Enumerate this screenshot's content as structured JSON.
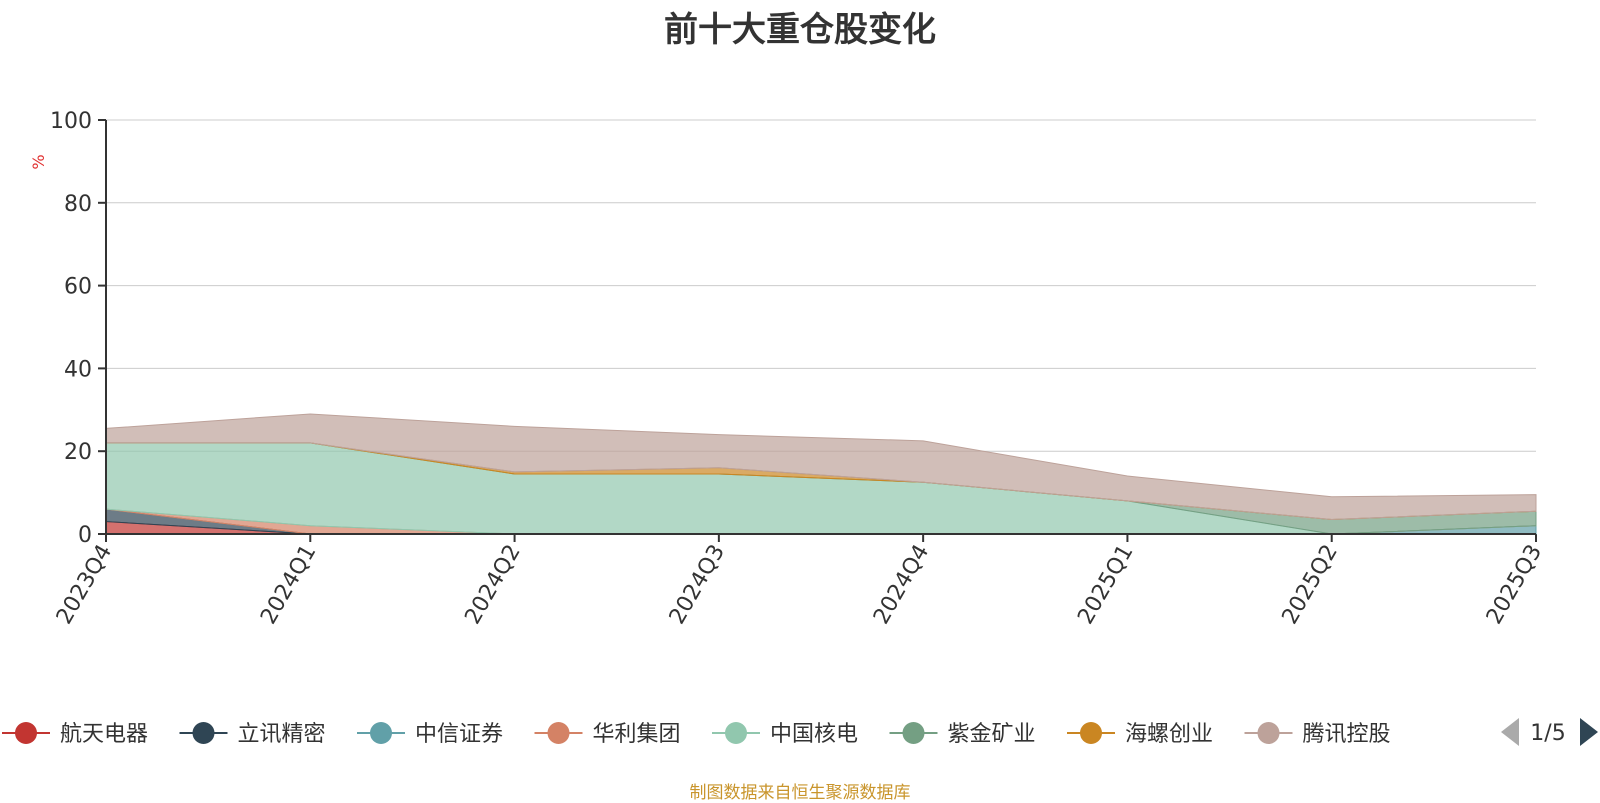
{
  "chart_data": {
    "type": "area",
    "title": "前十大重仓股变化",
    "ylabel": "%",
    "xlabel": "",
    "ylim": [
      0,
      100
    ],
    "yticks": [
      0,
      20,
      40,
      60,
      80,
      100
    ],
    "grid": true,
    "stacked": true,
    "categories": [
      "2023Q4",
      "2024Q1",
      "2024Q2",
      "2024Q3",
      "2024Q4",
      "2025Q1",
      "2025Q2",
      "2025Q3"
    ],
    "series": [
      {
        "name": "航天电器",
        "color": "#c23531",
        "values": [
          3,
          0,
          0,
          0,
          0,
          0,
          0,
          0
        ]
      },
      {
        "name": "立讯精密",
        "color": "#2f4554",
        "values": [
          3,
          0,
          0,
          0,
          0,
          0,
          0,
          0
        ]
      },
      {
        "name": "中信证券",
        "color": "#61a0a8",
        "values": [
          0,
          0,
          0,
          0,
          0,
          0,
          0,
          2
        ]
      },
      {
        "name": "华利集团",
        "color": "#d48265",
        "values": [
          0,
          2,
          0,
          0,
          0,
          0,
          0,
          0
        ]
      },
      {
        "name": "中国核电",
        "color": "#91c7ae",
        "values": [
          16,
          20,
          14.5,
          14.5,
          12.5,
          8,
          0,
          0
        ]
      },
      {
        "name": "紫金矿业",
        "color": "#749f83",
        "values": [
          0,
          0,
          0,
          0,
          0,
          0,
          3.5,
          3.5
        ]
      },
      {
        "name": "海螺创业",
        "color": "#ca8622",
        "values": [
          0,
          0,
          0.5,
          1.5,
          0,
          0,
          0,
          0
        ]
      },
      {
        "name": "腾讯控股",
        "color": "#bda29a",
        "values": [
          3.5,
          7,
          11,
          8,
          10,
          6,
          5.5,
          4
        ]
      }
    ],
    "legend": {
      "position": "bottom",
      "visible_items": [
        "航天电器",
        "立讯精密",
        "中信证券",
        "华利集团",
        "中国核电",
        "紫金矿业",
        "海螺创业",
        "腾讯控股"
      ],
      "page": "1/5"
    },
    "source_note": "制图数据来自恒生聚源数据库"
  }
}
